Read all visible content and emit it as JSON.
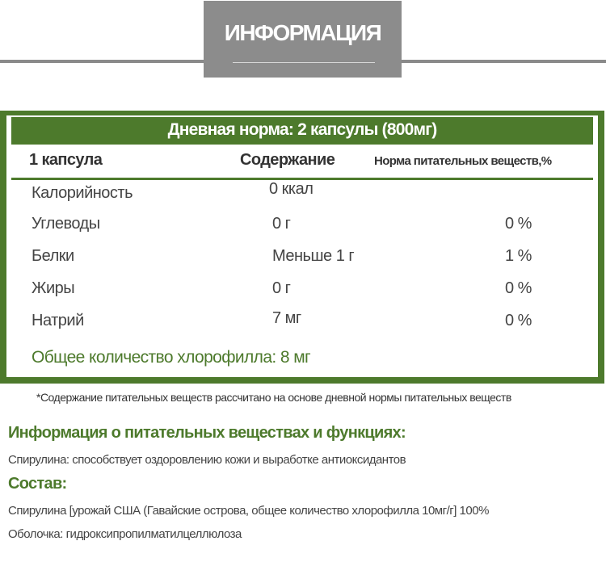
{
  "title": "ИНФОРМАЦИЯ",
  "table": {
    "header": "Дневная норма: 2 капсулы (800мг)",
    "columns": [
      "1 капсула",
      "Содержание",
      "Норма питательных веществ,%"
    ],
    "rows": [
      {
        "name": "Калорийность",
        "content": "0 ккал",
        "percent": ""
      },
      {
        "name": "Углеводы",
        "content": "0 г",
        "percent": "0 %"
      },
      {
        "name": "Белки",
        "content": "Меньше 1 г",
        "percent": "1 %"
      },
      {
        "name": "Жиры",
        "content": "0 г",
        "percent": "0 %"
      },
      {
        "name": "Натрий",
        "content": "7 мг",
        "percent": "0 %"
      }
    ],
    "total": "Общее количество хлорофилла: 8 мг"
  },
  "footnote": "*Содержание питательных веществ рассчитано на основе дневной нормы питательных веществ",
  "info_heading": "Информация о питательных веществах и функциях:",
  "info_text": "Спирулина: способствует оздоровлению кожи и выработке антиоксидантов",
  "composition_heading": "Состав:",
  "composition_lines": [
    "Спирулина [урожай США (Гавайские острова, общее количество хлорофилла 10мг/г] 100%",
    "Оболочка: гидроксипропилматилцеллюлоза"
  ],
  "colors": {
    "accent": "#4d7a2c",
    "title_bg": "#8c8c8c"
  }
}
